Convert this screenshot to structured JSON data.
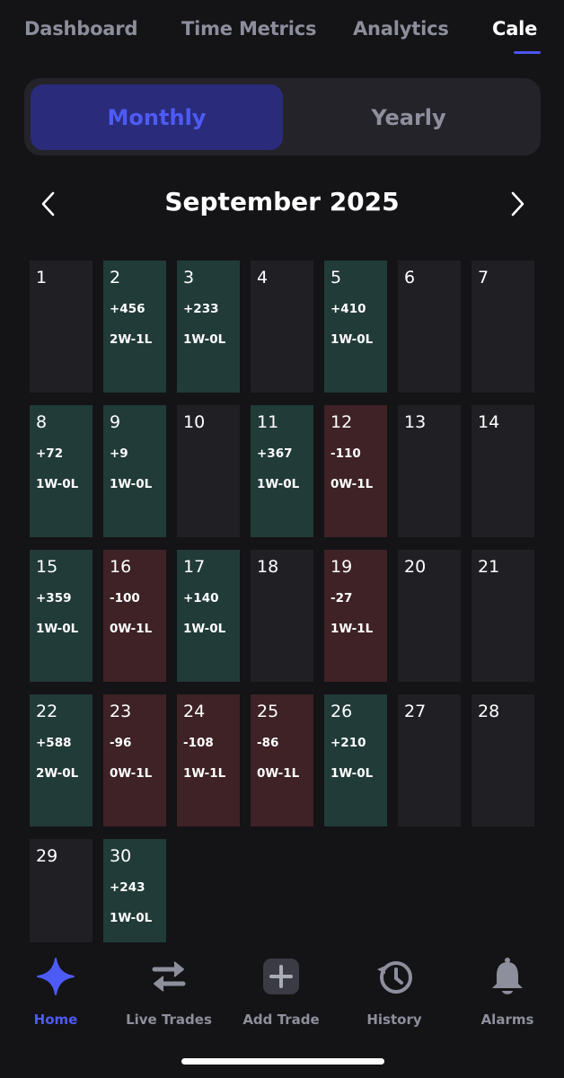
{
  "top_tabs": [
    {
      "label": "Dashboard"
    },
    {
      "label": "Time Metrics"
    },
    {
      "label": "Analytics"
    },
    {
      "label": "Cale"
    }
  ],
  "segment": {
    "monthly": "Monthly",
    "yearly": "Yearly"
  },
  "month_title": "September 2025",
  "days": [
    {
      "num": "1",
      "pnl": "",
      "record": "",
      "status": "none"
    },
    {
      "num": "2",
      "pnl": "+456",
      "record": "2W-1L",
      "status": "win"
    },
    {
      "num": "3",
      "pnl": "+233",
      "record": "1W-0L",
      "status": "win"
    },
    {
      "num": "4",
      "pnl": "",
      "record": "",
      "status": "none"
    },
    {
      "num": "5",
      "pnl": "+410",
      "record": "1W-0L",
      "status": "win"
    },
    {
      "num": "6",
      "pnl": "",
      "record": "",
      "status": "none"
    },
    {
      "num": "7",
      "pnl": "",
      "record": "",
      "status": "none"
    },
    {
      "num": "8",
      "pnl": "+72",
      "record": "1W-0L",
      "status": "win"
    },
    {
      "num": "9",
      "pnl": "+9",
      "record": "1W-0L",
      "status": "win"
    },
    {
      "num": "10",
      "pnl": "",
      "record": "",
      "status": "none"
    },
    {
      "num": "11",
      "pnl": "+367",
      "record": "1W-0L",
      "status": "win"
    },
    {
      "num": "12",
      "pnl": "-110",
      "record": "0W-1L",
      "status": "loss"
    },
    {
      "num": "13",
      "pnl": "",
      "record": "",
      "status": "none"
    },
    {
      "num": "14",
      "pnl": "",
      "record": "",
      "status": "none"
    },
    {
      "num": "15",
      "pnl": "+359",
      "record": "1W-0L",
      "status": "win"
    },
    {
      "num": "16",
      "pnl": "-100",
      "record": "0W-1L",
      "status": "loss"
    },
    {
      "num": "17",
      "pnl": "+140",
      "record": "1W-0L",
      "status": "win"
    },
    {
      "num": "18",
      "pnl": "",
      "record": "",
      "status": "none"
    },
    {
      "num": "19",
      "pnl": "-27",
      "record": "1W-1L",
      "status": "loss"
    },
    {
      "num": "20",
      "pnl": "",
      "record": "",
      "status": "none"
    },
    {
      "num": "21",
      "pnl": "",
      "record": "",
      "status": "none"
    },
    {
      "num": "22",
      "pnl": "+588",
      "record": "2W-0L",
      "status": "win"
    },
    {
      "num": "23",
      "pnl": "-96",
      "record": "0W-1L",
      "status": "loss"
    },
    {
      "num": "24",
      "pnl": "-108",
      "record": "1W-1L",
      "status": "loss"
    },
    {
      "num": "25",
      "pnl": "-86",
      "record": "0W-1L",
      "status": "loss"
    },
    {
      "num": "26",
      "pnl": "+210",
      "record": "1W-0L",
      "status": "win"
    },
    {
      "num": "27",
      "pnl": "",
      "record": "",
      "status": "none"
    },
    {
      "num": "28",
      "pnl": "",
      "record": "",
      "status": "none"
    },
    {
      "num": "29",
      "pnl": "",
      "record": "",
      "status": "none"
    },
    {
      "num": "30",
      "pnl": "+243",
      "record": "1W-0L",
      "status": "win"
    }
  ],
  "bottom_nav": [
    {
      "label": "Home",
      "icon": "sparkle-icon"
    },
    {
      "label": "Live Trades",
      "icon": "swap-arrows-icon"
    },
    {
      "label": "Add Trade",
      "icon": "plus-square-icon"
    },
    {
      "label": "History",
      "icon": "history-clock-icon"
    },
    {
      "label": "Alarms",
      "icon": "bell-icon"
    }
  ],
  "colors": {
    "background": "#141316",
    "accent": "#4d5bf5",
    "win": "#213b38",
    "loss": "#3e2226",
    "neutral_cell": "#201f24"
  }
}
